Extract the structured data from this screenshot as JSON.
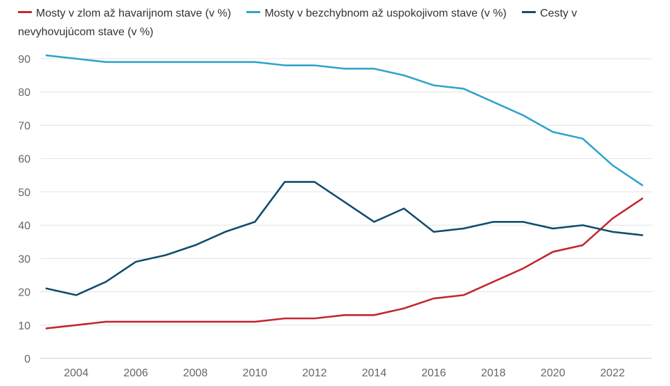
{
  "chart_data": {
    "type": "line",
    "title": "",
    "xlabel": "",
    "ylabel": "",
    "x": [
      2003,
      2004,
      2005,
      2006,
      2007,
      2008,
      2009,
      2010,
      2011,
      2012,
      2013,
      2014,
      2015,
      2016,
      2017,
      2018,
      2019,
      2020,
      2021,
      2022,
      2023
    ],
    "xlim": [
      2003,
      2023
    ],
    "ylim": [
      0,
      90
    ],
    "xticks": [
      "2004",
      "2006",
      "2008",
      "2010",
      "2012",
      "2014",
      "2016",
      "2018",
      "2020",
      "2022"
    ],
    "yticks": [
      "0",
      "10",
      "20",
      "30",
      "40",
      "50",
      "60",
      "70",
      "80",
      "90"
    ],
    "grid": true,
    "legend_position": "top-left",
    "series": [
      {
        "name": "Mosty v zlom až havarijnom stave (v %)",
        "color": "#c0282d",
        "values": [
          9,
          10,
          11,
          11,
          11,
          11,
          11,
          11,
          12,
          12,
          13,
          13,
          15,
          18,
          19,
          23,
          27,
          32,
          34,
          42,
          48
        ]
      },
      {
        "name": "Mosty v bezchybnom až uspokojivom stave (v %)",
        "color": "#2fa3cc",
        "values": [
          91,
          90,
          89,
          89,
          89,
          89,
          89,
          89,
          88,
          88,
          87,
          87,
          85,
          82,
          81,
          77,
          73,
          68,
          66,
          58,
          52
        ]
      },
      {
        "name": "Cesty v nevyhovujúcom stave (v %)",
        "color": "#0f4c6e",
        "values": [
          21,
          19,
          23,
          29,
          31,
          34,
          38,
          41,
          53,
          53,
          47,
          41,
          45,
          38,
          39,
          41,
          41,
          39,
          40,
          38,
          37
        ]
      }
    ]
  }
}
